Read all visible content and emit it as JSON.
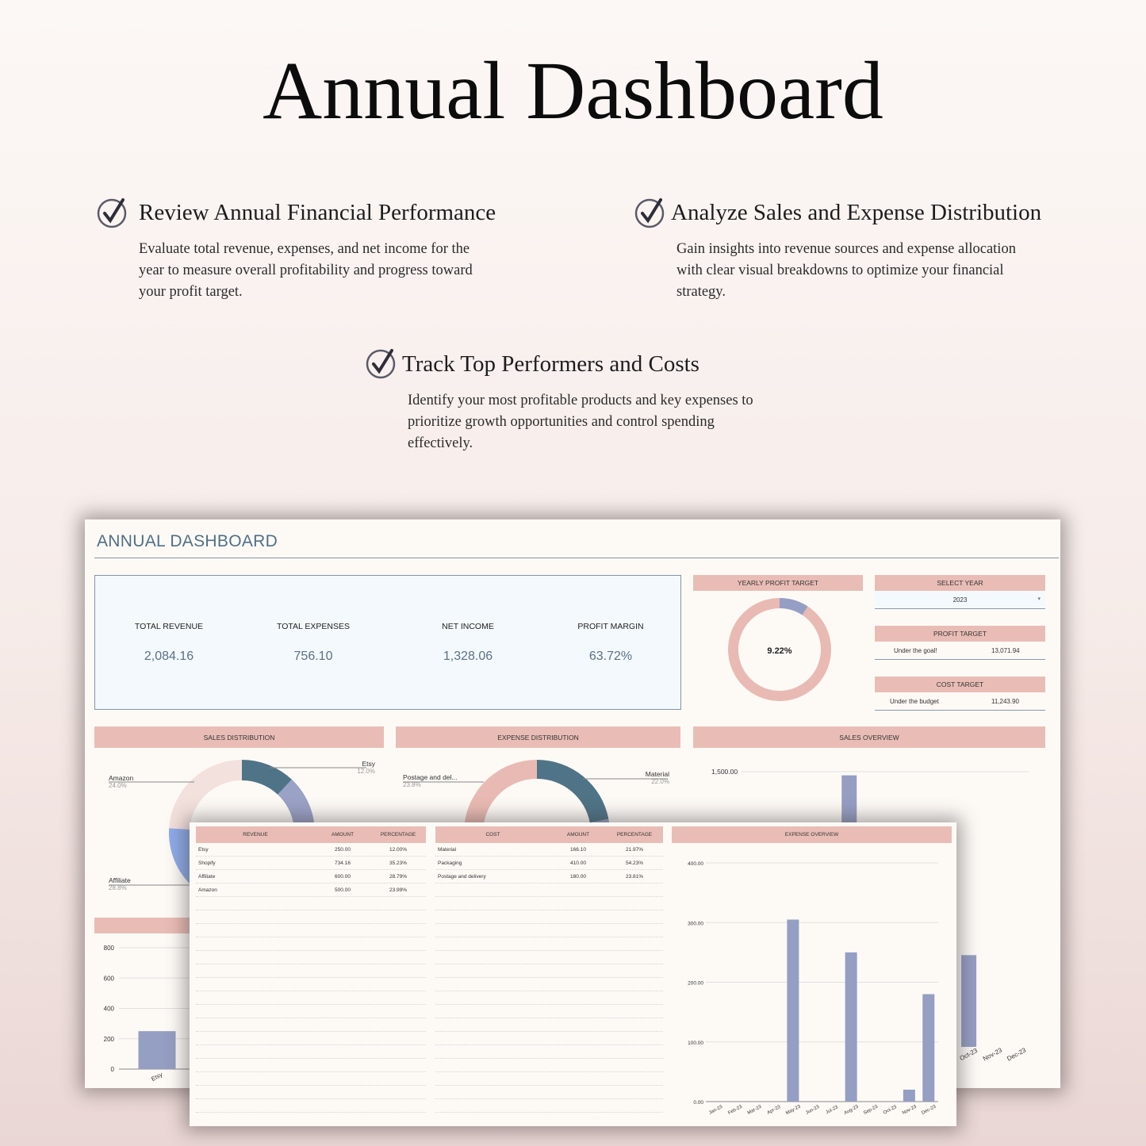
{
  "hero": {
    "title": "Annual Dashboard"
  },
  "features": [
    {
      "title": "Review Annual Financial Performance",
      "text": "Evaluate total revenue, expenses, and net income for the year to measure overall profitability and progress toward your profit target."
    },
    {
      "title": "Analyze Sales and Expense Distribution",
      "text": "Gain insights into revenue sources and expense allocation with clear visual breakdowns to optimize your financial strategy."
    },
    {
      "title": "Track Top Performers and Costs",
      "text": "Identify your most profitable products and key expenses to prioritize growth opportunities and control spending effectively."
    }
  ],
  "dashboard": {
    "title": "ANNUAL DASHBOARD",
    "kpis": [
      {
        "label": "TOTAL REVENUE",
        "value": "2,084.16"
      },
      {
        "label": "TOTAL EXPENSES",
        "value": "756.10"
      },
      {
        "label": "NET INCOME",
        "value": "1,328.06"
      },
      {
        "label": "PROFIT MARGIN",
        "value": "63.72%"
      }
    ],
    "yearly_profit_target": {
      "header": "YEARLY PROFIT TARGET",
      "value_label": "9.22%",
      "fraction": 0.0922
    },
    "select_year": {
      "header": "SELECT YEAR",
      "value": "2023"
    },
    "profit_target": {
      "header": "PROFIT TARGET",
      "status": "Under the goal!",
      "amount": "13,071.94"
    },
    "cost_target": {
      "header": "COST TARGET",
      "status": "Under the budget",
      "amount": "11,243.90"
    },
    "sales_distribution_header": "SALES DISTRIBUTION",
    "expense_distribution_header": "EXPENSE DISTRIBUTION",
    "sales_overview_header": "SALES OVERVIEW",
    "colors": {
      "accent": "#e9bdb6",
      "title": "#4f6f86",
      "bar": "#959ec3",
      "teal": "#4f7487"
    }
  },
  "tables": {
    "revenue": {
      "headers": [
        "REVENUE",
        "AMOUNT",
        "PERCENTAGE"
      ],
      "rows": [
        [
          "Etsy",
          "250.00",
          "12.00%"
        ],
        [
          "Shopify",
          "734.16",
          "35.23%"
        ],
        [
          "Affiliate",
          "600.00",
          "28.79%"
        ],
        [
          "Amazon",
          "500.00",
          "23.99%"
        ]
      ]
    },
    "cost": {
      "headers": [
        "COST",
        "AMOUNT",
        "PERCENTAGE"
      ],
      "rows": [
        [
          "Material",
          "166.10",
          "21.97%"
        ],
        [
          "Packaging",
          "410.00",
          "54.23%"
        ],
        [
          "Postage and delivery",
          "180.00",
          "23.81%"
        ]
      ]
    },
    "expense_overview_header": "EXPENSE OVERVIEW"
  },
  "chart_data": [
    {
      "type": "pie",
      "title": "SALES DISTRIBUTION",
      "slices": [
        {
          "name": "Etsy",
          "label": "12.0%",
          "value": 12.0,
          "color": "#4f7487"
        },
        {
          "name": "Shopify",
          "label": "",
          "value": 35.2,
          "color": "#9aa2c6"
        },
        {
          "name": "Affiliate",
          "label": "28.8%",
          "value": 28.8,
          "color": "#8eabe9"
        },
        {
          "name": "Amazon",
          "label": "24.0%",
          "value": 24.0,
          "color": "#f3e1dd"
        }
      ]
    },
    {
      "type": "pie",
      "title": "EXPENSE DISTRIBUTION",
      "slices": [
        {
          "name": "Material",
          "label": "22.0%",
          "value": 22.0,
          "color": "#4f7487"
        },
        {
          "name": "Packaging",
          "label": "",
          "value": 54.2,
          "color": "#9aa2c6"
        },
        {
          "name": "Postage and del...",
          "label": "23.8%",
          "value": 23.8,
          "color": "#e9bab3"
        }
      ]
    },
    {
      "type": "bar",
      "title": "SALES OVERVIEW",
      "categories": [
        "Jan-23",
        "Feb-23",
        "Mar-23",
        "Apr-23",
        "May-23",
        "Jun-23",
        "Jul-23",
        "Aug-23",
        "Sep-23",
        "Oct-23",
        "Nov-23",
        "Dec-23"
      ],
      "values": [
        0,
        0,
        0,
        0,
        1480,
        0,
        0,
        0,
        0,
        500,
        0,
        0
      ],
      "ylim": [
        0,
        1500
      ],
      "yticks": [
        "1,500.00"
      ],
      "grid": true
    },
    {
      "type": "bar",
      "title": "",
      "categories": [
        "Etsy"
      ],
      "values": [
        250
      ],
      "ylim": [
        0,
        800
      ],
      "yticks": [
        "0",
        "200",
        "400",
        "600",
        "800"
      ],
      "grid": true
    },
    {
      "type": "bar",
      "title": "EXPENSE OVERVIEW",
      "categories": [
        "Jan-23",
        "Feb-23",
        "Mar-23",
        "Apr-23",
        "May-23",
        "Jun-23",
        "Jul-23",
        "Aug-23",
        "Sep-23",
        "Oct-23",
        "Nov-23",
        "Dec-23"
      ],
      "values": [
        0,
        0,
        0,
        0,
        305,
        0,
        0,
        250,
        0,
        0,
        20,
        180
      ],
      "ylim": [
        0,
        400
      ],
      "yticks": [
        "0.00",
        "100.00",
        "200.00",
        "300.00",
        "400.00"
      ],
      "grid": true
    }
  ]
}
